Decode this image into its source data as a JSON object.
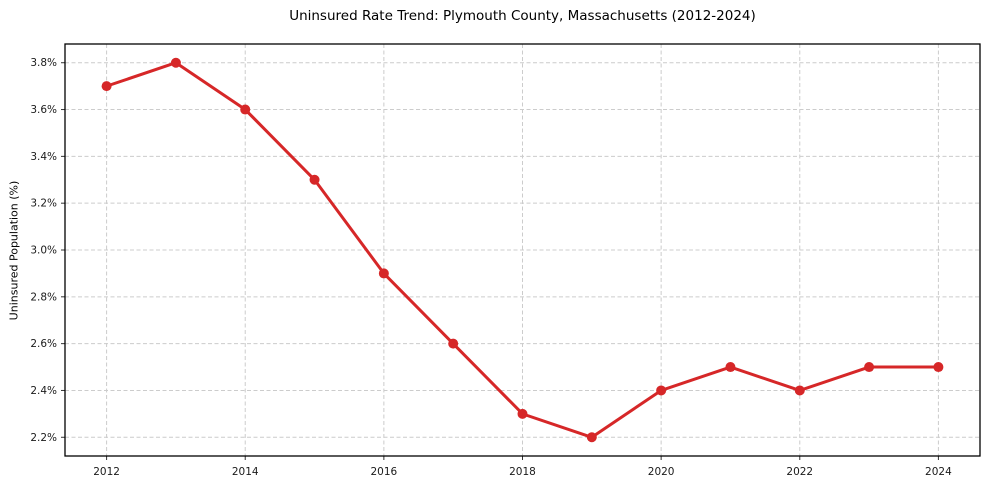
{
  "chart_data": {
    "type": "line",
    "title": "Uninsured Rate Trend: Plymouth County, Massachusetts (2012-2024)",
    "ylabel": "Uninsured Population (%)",
    "xlabel": "",
    "x": [
      2012,
      2013,
      2014,
      2015,
      2016,
      2017,
      2018,
      2019,
      2020,
      2021,
      2022,
      2023,
      2024
    ],
    "values": [
      3.7,
      3.8,
      3.6,
      3.3,
      2.9,
      2.6,
      2.3,
      2.2,
      2.4,
      2.5,
      2.4,
      2.5,
      2.5
    ],
    "xlim": [
      2011.4,
      2024.6
    ],
    "ylim": [
      2.12,
      3.88
    ],
    "xticks": [
      2012,
      2014,
      2016,
      2018,
      2020,
      2022,
      2024
    ],
    "yticks": [
      2.2,
      2.4,
      2.6,
      2.8,
      3.0,
      3.2,
      3.4,
      3.6,
      3.8
    ],
    "ytick_suffix": "%",
    "grid": true,
    "legend": "none",
    "line_color": "#d62728",
    "marker": "circle",
    "marker_radius": 5,
    "line_width": 3,
    "grid_color": "#cccccc",
    "axis_color": "#000000",
    "tick_color": "#333333"
  }
}
